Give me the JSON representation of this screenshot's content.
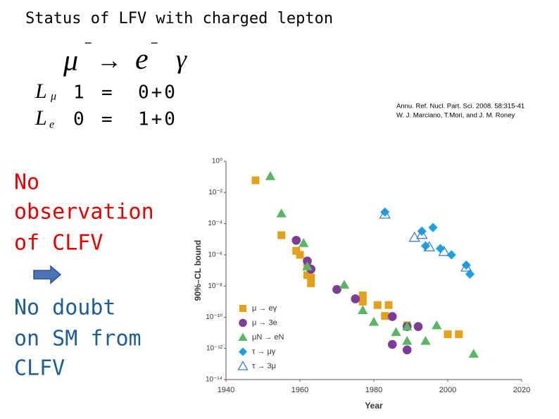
{
  "title": "Status of LFV with charged lepton",
  "decay": {
    "initial": "μ",
    "initial_charge": "−",
    "arrow": "→",
    "final": "e",
    "final_charge": "−",
    "photon": "γ"
  },
  "lepton_numbers": [
    {
      "symbol": "L",
      "subscript": "μ",
      "lhs": "1",
      "eq": "=",
      "rhs": "0+0"
    },
    {
      "symbol": "L",
      "subscript": "e",
      "lhs": "0",
      "eq": "=",
      "rhs": "1+0"
    }
  ],
  "reference": [
    "Annu. Ref. Nucl. Part. Sci. 2008. 58:315-41",
    "W. J. Marciano, T.Mori, and J. M. Roney"
  ],
  "statement": [
    "No",
    "observation",
    "of CLFV"
  ],
  "conclusion": [
    "No doubt",
    "on SM from",
    "CLFV"
  ],
  "chart_data": {
    "type": "scatter",
    "x_label": "Year",
    "y_label": "90%–CL bound",
    "xlim": [
      1940,
      2020
    ],
    "xticks": [
      1940,
      1960,
      1980,
      2000,
      2020
    ],
    "ylim": [
      1e-14,
      1
    ],
    "log_y": true,
    "yticks": [
      {
        "value": 1,
        "label": "10⁰"
      },
      {
        "value": 0.01,
        "label": "10⁻²"
      },
      {
        "value": 0.0001,
        "label": "10⁻⁴"
      },
      {
        "value": 1e-06,
        "label": "10⁻⁶"
      },
      {
        "value": 1e-08,
        "label": "10⁻⁸"
      },
      {
        "value": 1e-10,
        "label": "10⁻¹⁰"
      },
      {
        "value": 1e-12,
        "label": "10⁻¹²"
      },
      {
        "value": 1e-14,
        "label": "10⁻¹⁴"
      }
    ],
    "grid": false,
    "legend": "lower left",
    "series": [
      {
        "name": "μ → eγ",
        "color": "#e3a11a",
        "marker": "square",
        "x": [
          1948,
          1955,
          1959,
          1960,
          1962,
          1962,
          1963,
          1963,
          1977,
          1977,
          1981,
          1984,
          1983,
          1989,
          2000,
          2003
        ],
        "values": [
          0.06,
          1.8e-05,
          1.8e-06,
          1e-06,
          2e-07,
          5e-08,
          3.5e-08,
          1.5e-08,
          2.5e-09,
          1e-09,
          6e-10,
          6e-10,
          1.2e-10,
          3e-11,
          8e-12,
          8e-12
        ]
      },
      {
        "name": "μ → 3e",
        "color": "#7c3c97",
        "marker": "circle",
        "x": [
          1959,
          1962,
          1963,
          1970,
          1975,
          1985,
          1985,
          1989,
          1992,
          1989
        ],
        "values": [
          8.5e-06,
          4e-07,
          1.2e-07,
          6e-09,
          1.5e-09,
          1.1e-10,
          1.8e-12,
          2.5e-11,
          2.5e-11,
          8e-13
        ]
      },
      {
        "name": "μN → eN",
        "color": "#5bb567",
        "marker": "triangle",
        "x": [
          1952,
          1955,
          1961,
          1962,
          1972,
          1977,
          1980,
          1986,
          1989,
          1989,
          1994,
          1997,
          2007
        ],
        "values": [
          0.11,
          0.00045,
          5.6e-06,
          1.8e-07,
          1.2e-08,
          2.8e-10,
          5e-11,
          1.1e-11,
          2.5e-11,
          3e-12,
          3e-12,
          3e-11,
          4.5e-13
        ]
      },
      {
        "name": "τ → μγ",
        "color": "#1aa3e3",
        "marker": "diamond",
        "x": [
          1983,
          1993,
          1996,
          1994,
          1998,
          2001,
          2005,
          2006
        ],
        "values": [
          0.00055,
          3.3e-05,
          5.6e-05,
          3.7e-06,
          2.5e-06,
          1e-06,
          2.2e-07,
          5.8e-08
        ]
      },
      {
        "name": "τ → 3μ",
        "color": "#3f7fcf",
        "marker": "triangle-open",
        "x": [
          1983,
          1991,
          1993,
          1995,
          1999,
          2005
        ],
        "values": [
          0.0004,
          1.3e-05,
          2e-05,
          3.2e-06,
          1.6e-06,
          1.6e-07
        ]
      }
    ]
  }
}
